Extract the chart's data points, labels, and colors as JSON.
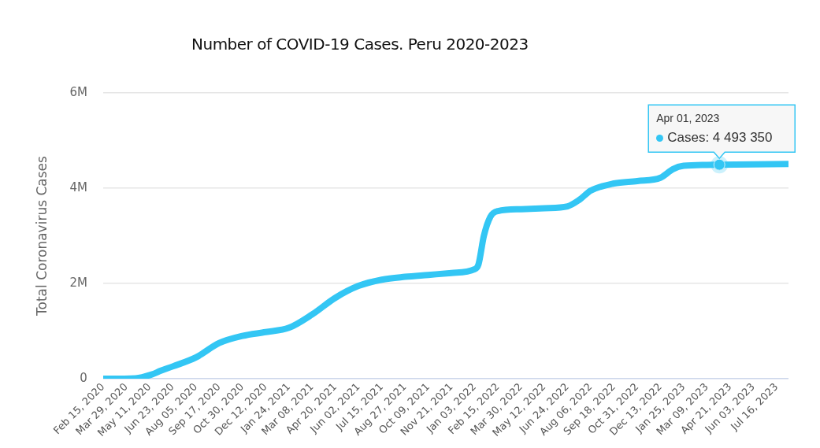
{
  "chart_data": {
    "type": "line",
    "title": "Number of COVID-19 Cases. Peru 2020-2023",
    "ylabel": "Total Coronavirus Cases",
    "xlim": [
      "2020-02-15",
      "2023-08-07"
    ],
    "xticks": [
      {
        "value": "2020-02-15",
        "label": "Feb 15, 2020"
      },
      {
        "value": "2020-03-29",
        "label": "Mar 29, 2020"
      },
      {
        "value": "2020-05-11",
        "label": "May 11, 2020"
      },
      {
        "value": "2020-06-23",
        "label": "Jun 23, 2020"
      },
      {
        "value": "2020-08-05",
        "label": "Aug 05, 2020"
      },
      {
        "value": "2020-09-17",
        "label": "Sep 17, 2020"
      },
      {
        "value": "2020-10-30",
        "label": "Oct 30, 2020"
      },
      {
        "value": "2020-12-12",
        "label": "Dec 12, 2020"
      },
      {
        "value": "2021-01-24",
        "label": "Jan 24, 2021"
      },
      {
        "value": "2021-03-08",
        "label": "Mar 08, 2021"
      },
      {
        "value": "2021-04-20",
        "label": "Apr 20, 2021"
      },
      {
        "value": "2021-06-02",
        "label": "Jun 02, 2021"
      },
      {
        "value": "2021-07-15",
        "label": "Jul 15, 2021"
      },
      {
        "value": "2021-08-27",
        "label": "Aug 27, 2021"
      },
      {
        "value": "2021-10-09",
        "label": "Oct 09, 2021"
      },
      {
        "value": "2021-11-21",
        "label": "Nov 21, 2021"
      },
      {
        "value": "2022-01-03",
        "label": "Jan 03, 2022"
      },
      {
        "value": "2022-02-15",
        "label": "Feb 15, 2022"
      },
      {
        "value": "2022-03-30",
        "label": "Mar 30, 2022"
      },
      {
        "value": "2022-05-12",
        "label": "May 12, 2022"
      },
      {
        "value": "2022-06-24",
        "label": "Jun 24, 2022"
      },
      {
        "value": "2022-08-06",
        "label": "Aug 06, 2022"
      },
      {
        "value": "2022-09-18",
        "label": "Sep 18, 2022"
      },
      {
        "value": "2022-10-31",
        "label": "Oct 31, 2022"
      },
      {
        "value": "2022-12-13",
        "label": "Dec 13, 2022"
      },
      {
        "value": "2023-01-25",
        "label": "Jan 25, 2023"
      },
      {
        "value": "2023-03-09",
        "label": "Mar 09, 2023"
      },
      {
        "value": "2023-04-21",
        "label": "Apr 21, 2023"
      },
      {
        "value": "2023-06-03",
        "label": "Jun 03, 2023"
      },
      {
        "value": "2023-07-16",
        "label": "Jul 16, 2023"
      }
    ],
    "ylim": [
      0,
      6000000
    ],
    "yticks": [
      {
        "value": 0,
        "label": "0"
      },
      {
        "value": 2000000,
        "label": "2M"
      },
      {
        "value": 4000000,
        "label": "4M"
      },
      {
        "value": 6000000,
        "label": "6M"
      }
    ],
    "grid": "y",
    "legend": false,
    "marker": "none",
    "line_style": "solid",
    "x": [
      "2020-02-15",
      "2020-04-15",
      "2020-05-15",
      "2020-06-01",
      "2020-06-23",
      "2020-08-05",
      "2020-09-17",
      "2020-10-30",
      "2020-12-12",
      "2021-01-24",
      "2021-03-08",
      "2021-04-20",
      "2021-06-02",
      "2021-07-15",
      "2021-08-27",
      "2021-10-09",
      "2021-11-21",
      "2022-01-03",
      "2022-01-10",
      "2022-01-20",
      "2022-02-01",
      "2022-02-15",
      "2022-03-30",
      "2022-05-12",
      "2022-06-24",
      "2022-07-15",
      "2022-08-06",
      "2022-09-18",
      "2022-10-31",
      "2022-12-13",
      "2023-01-05",
      "2023-01-25",
      "2023-03-09",
      "2023-04-01",
      "2023-06-03",
      "2023-08-07"
    ],
    "series": [
      {
        "color": "#33c6f4",
        "values": [
          0,
          10000,
          90000,
          170000,
          260000,
          450000,
          750000,
          900000,
          980000,
          1070000,
          1350000,
          1700000,
          1950000,
          2080000,
          2140000,
          2180000,
          2220000,
          2300000,
          2400000,
          3000000,
          3400000,
          3520000,
          3560000,
          3580000,
          3620000,
          3750000,
          3950000,
          4100000,
          4150000,
          4220000,
          4400000,
          4470000,
          4490000,
          4493350,
          4500000,
          4510000
        ]
      }
    ],
    "annotations": [
      "Apr 01, 2023",
      {
        "text": "Cases: 4 493 350",
        "x": "2023-04-01",
        "y": 4493350
      }
    ]
  }
}
